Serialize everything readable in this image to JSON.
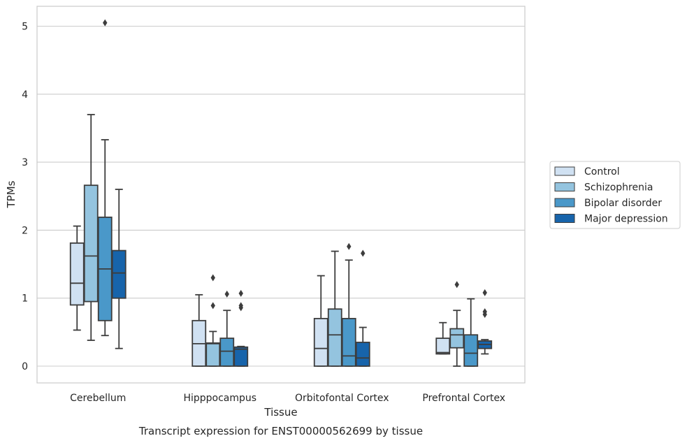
{
  "chart_data": {
    "type": "boxplot",
    "xlabel": "Tissue",
    "ylabel": "TPMs",
    "caption": "Transcript expression for ENST00000562699 by tissue",
    "ylim": [
      -0.25,
      5.3
    ],
    "yticks": [
      0,
      1,
      2,
      3,
      4,
      5
    ],
    "grid": "horizontal",
    "legend_position": "right",
    "categories": [
      "Cerebellum",
      "Hipppocampus",
      "Orbitofontal Cortex",
      "Prefrontal Cortex"
    ],
    "series": [
      {
        "name": "Control",
        "color": "#d0e1f2",
        "boxes": [
          {
            "whislo": 0.53,
            "q1": 0.9,
            "med": 1.22,
            "q3": 1.81,
            "whishi": 2.06,
            "fliers": []
          },
          {
            "whislo": 0.0,
            "q1": 0.0,
            "med": 0.33,
            "q3": 0.67,
            "whishi": 1.05,
            "fliers": []
          },
          {
            "whislo": 0.0,
            "q1": 0.0,
            "med": 0.26,
            "q3": 0.7,
            "whishi": 1.33,
            "fliers": []
          },
          {
            "whislo": 0.18,
            "q1": 0.18,
            "med": 0.2,
            "q3": 0.41,
            "whishi": 0.64,
            "fliers": []
          }
        ]
      },
      {
        "name": "Schizophrenia",
        "color": "#94c4df",
        "boxes": [
          {
            "whislo": 0.38,
            "q1": 0.95,
            "med": 1.62,
            "q3": 2.66,
            "whishi": 3.7,
            "fliers": []
          },
          {
            "whislo": 0.0,
            "q1": 0.0,
            "med": 0.33,
            "q3": 0.34,
            "whishi": 0.51,
            "fliers": [
              0.89,
              1.3
            ]
          },
          {
            "whislo": 0.0,
            "q1": 0.0,
            "med": 0.46,
            "q3": 0.84,
            "whishi": 1.69,
            "fliers": []
          },
          {
            "whislo": 0.0,
            "q1": 0.27,
            "med": 0.46,
            "q3": 0.55,
            "whishi": 0.82,
            "fliers": [
              1.2
            ]
          }
        ]
      },
      {
        "name": "Bipolar disorder",
        "color": "#4a98c9",
        "boxes": [
          {
            "whislo": 0.45,
            "q1": 0.67,
            "med": 1.43,
            "q3": 2.19,
            "whishi": 3.33,
            "fliers": [
              5.05
            ]
          },
          {
            "whislo": 0.0,
            "q1": 0.0,
            "med": 0.22,
            "q3": 0.41,
            "whishi": 0.82,
            "fliers": [
              1.06
            ]
          },
          {
            "whislo": 0.0,
            "q1": 0.0,
            "med": 0.15,
            "q3": 0.7,
            "whishi": 1.56,
            "fliers": [
              1.76
            ]
          },
          {
            "whislo": 0.0,
            "q1": 0.0,
            "med": 0.19,
            "q3": 0.46,
            "whishi": 0.99,
            "fliers": []
          }
        ]
      },
      {
        "name": "Major depression",
        "color": "#1764ab",
        "boxes": [
          {
            "whislo": 0.26,
            "q1": 1.0,
            "med": 1.37,
            "q3": 1.7,
            "whishi": 2.6,
            "fliers": []
          },
          {
            "whislo": 0.0,
            "q1": 0.0,
            "med": 0.25,
            "q3": 0.28,
            "whishi": 0.29,
            "fliers": [
              0.86,
              0.89,
              1.07
            ]
          },
          {
            "whislo": 0.0,
            "q1": 0.0,
            "med": 0.12,
            "q3": 0.35,
            "whishi": 0.57,
            "fliers": [
              1.66
            ]
          },
          {
            "whislo": 0.18,
            "q1": 0.26,
            "med": 0.32,
            "q3": 0.37,
            "whishi": 0.39,
            "fliers": [
              0.76,
              0.8,
              1.08
            ]
          }
        ]
      }
    ]
  }
}
